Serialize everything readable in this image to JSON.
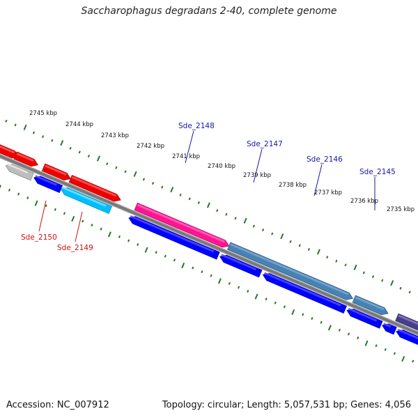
{
  "title": "Saccharophagus degradans 2-40, complete genome",
  "footer": {
    "accession": "Accession: NC_007912",
    "summary": "Topology: circular; Length: 5,057,531 bp; Genes: 4,056"
  },
  "colors": {
    "backbone": "#777777",
    "ticks": "#1f7a1f",
    "label_blue": "#1515a6",
    "label_red": "#cc1111"
  },
  "kbp_labels": [
    "2745 kbp",
    "2744 kbp",
    "2743 kbp",
    "2742 kbp",
    "2741 kbp",
    "2740 kbp",
    "2739 kbp",
    "2738 kbp",
    "2737 kbp",
    "2736 kbp",
    "2735 kbp"
  ],
  "gene_labels": [
    {
      "text": "Sde_2148",
      "color": "#1515a6"
    },
    {
      "text": "Sde_2147",
      "color": "#1515a6"
    },
    {
      "text": "Sde_2146",
      "color": "#1515a6"
    },
    {
      "text": "Sde_2145",
      "color": "#1515a6"
    },
    {
      "text": "Sde_2150",
      "color": "#cc1111"
    },
    {
      "text": "Sde_2149",
      "color": "#cc1111"
    }
  ],
  "features": [
    {
      "strand": "+",
      "color": "red"
    },
    {
      "strand": "+",
      "color": "red"
    },
    {
      "strand": "+",
      "color": "red"
    },
    {
      "strand": "+",
      "color": "red"
    },
    {
      "strand": "+",
      "color": "magenta"
    },
    {
      "strand": "+",
      "color": "steelblue"
    },
    {
      "strand": "+",
      "color": "steelblue"
    },
    {
      "strand": "+",
      "color": "purple"
    },
    {
      "strand": "-",
      "color": "gray"
    },
    {
      "strand": "-",
      "color": "blue"
    },
    {
      "strand": "-",
      "color": "cyan"
    },
    {
      "strand": "-",
      "color": "blue"
    },
    {
      "strand": "-",
      "color": "blue"
    },
    {
      "strand": "-",
      "color": "blue"
    },
    {
      "strand": "-",
      "color": "blue"
    },
    {
      "strand": "-",
      "color": "blue"
    },
    {
      "strand": "-",
      "color": "blue"
    }
  ]
}
